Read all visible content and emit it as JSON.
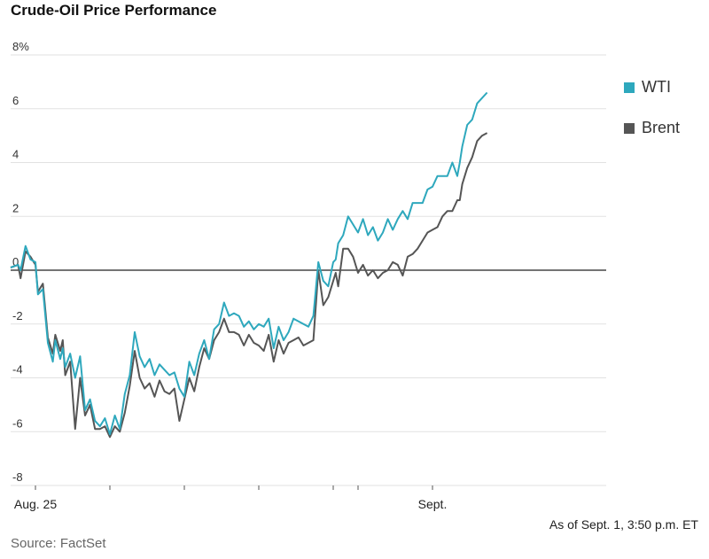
{
  "header": {
    "title": "Crude-Oil Price Performance",
    "note": "As of Sept. 1, 3:50 p.m. ET",
    "source": "Source: FactSet"
  },
  "chart_data": {
    "type": "line",
    "ylim": [
      -8,
      8
    ],
    "yticks": [
      8,
      6,
      4,
      2,
      0,
      -2,
      -4,
      -6,
      -8
    ],
    "yticks_labels": [
      "8%",
      "6",
      "4",
      "2",
      "0",
      "-2",
      "-4",
      "-6",
      "-8"
    ],
    "xlim": [
      0,
      12
    ],
    "x_ticks": [
      0.5,
      2.0,
      3.5,
      5.0,
      6.5,
      7.0,
      8.5
    ],
    "x_tick_labels": [
      {
        "x": 0.5,
        "label": "Aug. 25"
      },
      {
        "x": 8.5,
        "label": "Sept."
      }
    ],
    "grid": true,
    "legend_position": "right",
    "colors": {
      "WTI": "#2ea8bd",
      "Brent": "#555555",
      "zero": "#222222",
      "grid": "#e2e2e2"
    },
    "series": [
      {
        "name": "WTI",
        "x": [
          0,
          0.15,
          0.2,
          0.3,
          0.4,
          0.5,
          0.55,
          0.65,
          0.75,
          0.85,
          0.9,
          1.0,
          1.05,
          1.1,
          1.2,
          1.3,
          1.4,
          1.5,
          1.6,
          1.7,
          1.8,
          1.9,
          2.0,
          2.1,
          2.2,
          2.3,
          2.4,
          2.5,
          2.6,
          2.7,
          2.8,
          2.9,
          3.0,
          3.1,
          3.2,
          3.3,
          3.4,
          3.5,
          3.6,
          3.7,
          3.8,
          3.9,
          4.0,
          4.1,
          4.2,
          4.3,
          4.4,
          4.5,
          4.6,
          4.7,
          4.8,
          4.9,
          5.0,
          5.1,
          5.2,
          5.3,
          5.4,
          5.5,
          5.6,
          5.7,
          5.8,
          5.9,
          6.0,
          6.1,
          6.2,
          6.3,
          6.4,
          6.5,
          6.55,
          6.6,
          6.7,
          6.8,
          6.9,
          7.0,
          7.1,
          7.2,
          7.3,
          7.4,
          7.5,
          7.6,
          7.7,
          7.8,
          7.9,
          8.0,
          8.1,
          8.2,
          8.3,
          8.4,
          8.5,
          8.6,
          8.7,
          8.8,
          8.9,
          9.0,
          9.05,
          9.1,
          9.2,
          9.3,
          9.4,
          9.5,
          9.6
        ],
        "values": [
          0.1,
          0.2,
          0.0,
          0.9,
          0.4,
          0.3,
          -0.9,
          -0.7,
          -2.7,
          -3.4,
          -2.6,
          -3.3,
          -2.9,
          -3.6,
          -3.1,
          -4.0,
          -3.2,
          -5.2,
          -4.8,
          -5.6,
          -5.8,
          -5.5,
          -6.1,
          -5.4,
          -5.9,
          -4.6,
          -3.9,
          -2.3,
          -3.2,
          -3.6,
          -3.3,
          -3.9,
          -3.5,
          -3.7,
          -3.9,
          -3.8,
          -4.4,
          -4.7,
          -3.4,
          -3.9,
          -3.1,
          -2.6,
          -3.3,
          -2.2,
          -2.0,
          -1.2,
          -1.7,
          -1.6,
          -1.7,
          -2.1,
          -1.9,
          -2.2,
          -2.0,
          -2.1,
          -1.8,
          -2.9,
          -2.1,
          -2.6,
          -2.3,
          -1.8,
          -1.9,
          -2.0,
          -2.1,
          -1.7,
          0.3,
          -0.4,
          -0.6,
          0.3,
          0.4,
          1.0,
          1.3,
          2.0,
          1.7,
          1.4,
          1.9,
          1.3,
          1.6,
          1.1,
          1.4,
          1.9,
          1.5,
          1.9,
          2.2,
          1.9,
          2.5,
          2.5,
          2.5,
          3.0,
          3.1,
          3.5,
          3.5,
          3.5,
          4.0,
          3.5,
          4.0,
          4.6,
          5.4,
          5.6,
          6.2,
          6.4,
          6.6
        ]
      },
      {
        "name": "Brent",
        "x": [
          0,
          0.15,
          0.2,
          0.3,
          0.4,
          0.5,
          0.55,
          0.65,
          0.75,
          0.85,
          0.9,
          1.0,
          1.05,
          1.1,
          1.2,
          1.3,
          1.4,
          1.5,
          1.6,
          1.7,
          1.8,
          1.9,
          2.0,
          2.1,
          2.2,
          2.3,
          2.4,
          2.5,
          2.6,
          2.7,
          2.8,
          2.9,
          3.0,
          3.1,
          3.2,
          3.3,
          3.4,
          3.5,
          3.6,
          3.7,
          3.8,
          3.9,
          4.0,
          4.1,
          4.2,
          4.3,
          4.4,
          4.5,
          4.6,
          4.7,
          4.8,
          4.9,
          5.0,
          5.1,
          5.2,
          5.3,
          5.4,
          5.5,
          5.6,
          5.7,
          5.8,
          5.9,
          6.0,
          6.1,
          6.2,
          6.3,
          6.4,
          6.5,
          6.55,
          6.6,
          6.7,
          6.8,
          6.9,
          7.0,
          7.1,
          7.2,
          7.3,
          7.4,
          7.5,
          7.6,
          7.7,
          7.8,
          7.9,
          8.0,
          8.1,
          8.2,
          8.3,
          8.4,
          8.5,
          8.6,
          8.7,
          8.8,
          8.9,
          9.0,
          9.05,
          9.1,
          9.2,
          9.3,
          9.4,
          9.5,
          9.6
        ],
        "values": [
          0.1,
          0.2,
          -0.3,
          0.7,
          0.5,
          0.2,
          -0.8,
          -0.5,
          -2.5,
          -3.1,
          -2.4,
          -3.0,
          -2.6,
          -3.9,
          -3.4,
          -5.9,
          -4.0,
          -5.4,
          -5.0,
          -5.9,
          -5.9,
          -5.8,
          -6.2,
          -5.8,
          -6.0,
          -5.3,
          -4.3,
          -3.0,
          -4.0,
          -4.4,
          -4.2,
          -4.7,
          -4.1,
          -4.5,
          -4.6,
          -4.4,
          -5.6,
          -4.8,
          -4.0,
          -4.5,
          -3.6,
          -2.9,
          -3.3,
          -2.6,
          -2.3,
          -1.8,
          -2.3,
          -2.3,
          -2.4,
          -2.8,
          -2.4,
          -2.7,
          -2.8,
          -3.0,
          -2.4,
          -3.4,
          -2.6,
          -3.1,
          -2.7,
          -2.6,
          -2.5,
          -2.8,
          -2.7,
          -2.6,
          0.0,
          -1.3,
          -1.0,
          -0.4,
          -0.1,
          -0.6,
          0.8,
          0.8,
          0.5,
          -0.1,
          0.2,
          -0.2,
          0.0,
          -0.3,
          -0.1,
          0.0,
          0.3,
          0.2,
          -0.2,
          0.5,
          0.6,
          0.8,
          1.1,
          1.4,
          1.5,
          1.6,
          2.0,
          2.2,
          2.2,
          2.6,
          2.6,
          3.2,
          3.8,
          4.2,
          4.8,
          5.0,
          5.1
        ]
      }
    ]
  }
}
